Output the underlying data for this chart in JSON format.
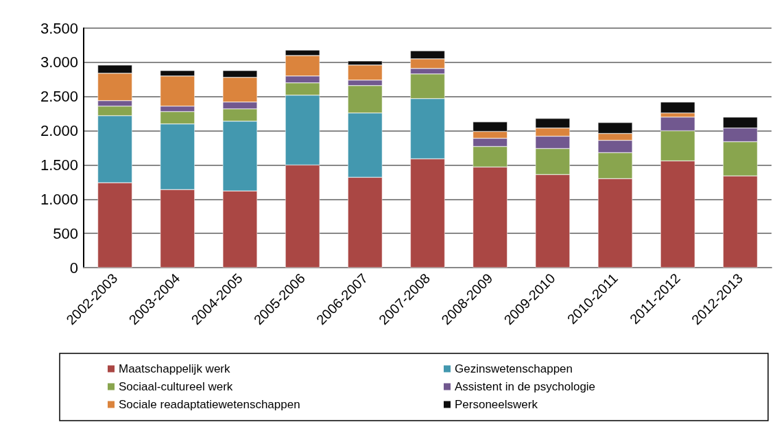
{
  "chart_data": {
    "type": "bar",
    "stacked": true,
    "categories": [
      "2002-2003",
      "2003-2004",
      "2004-2005",
      "2005-2006",
      "2006-2007",
      "2007-2008",
      "2008-2009",
      "2009-2010",
      "2010-2011",
      "2011-2012",
      "2012-2013"
    ],
    "series": [
      {
        "name": "Maatschappelijk werk",
        "color": "#aa4744",
        "values": [
          1240,
          1140,
          1120,
          1500,
          1320,
          1590,
          1470,
          1360,
          1300,
          1560,
          1340
        ]
      },
      {
        "name": "Gezinswetenschappen",
        "color": "#4398af",
        "values": [
          980,
          960,
          1020,
          1020,
          940,
          880,
          null,
          null,
          null,
          null,
          null
        ]
      },
      {
        "name": "Sociaal-cultureel werk",
        "color": "#89a54e",
        "values": [
          140,
          180,
          180,
          180,
          400,
          360,
          300,
          380,
          380,
          440,
          500
        ]
      },
      {
        "name": "Assistent in de psychologie",
        "color": "#71588f",
        "values": [
          80,
          80,
          100,
          100,
          80,
          80,
          120,
          180,
          180,
          200,
          200
        ]
      },
      {
        "name": "Sociale readaptatiewetenschappen",
        "color": "#db843d",
        "values": [
          400,
          440,
          360,
          300,
          220,
          140,
          100,
          120,
          100,
          60,
          null
        ]
      },
      {
        "name": "Personeelswerk",
        "color": "#0d0d0d",
        "values": [
          120,
          80,
          100,
          80,
          60,
          120,
          140,
          140,
          160,
          160,
          160
        ]
      }
    ],
    "ylim": [
      0,
      3500
    ],
    "yticks": [
      0,
      500,
      {
        "value": 1000,
        "label": "1.000"
      },
      {
        "value": 1500,
        "label": "1.500"
      },
      {
        "value": 2000,
        "label": "2.000"
      },
      {
        "value": 2500,
        "label": "2.500"
      },
      {
        "value": 3000,
        "label": "3.000"
      },
      {
        "value": 3500,
        "label": "3.500"
      }
    ],
    "grid": "y",
    "legend": "bottom"
  }
}
